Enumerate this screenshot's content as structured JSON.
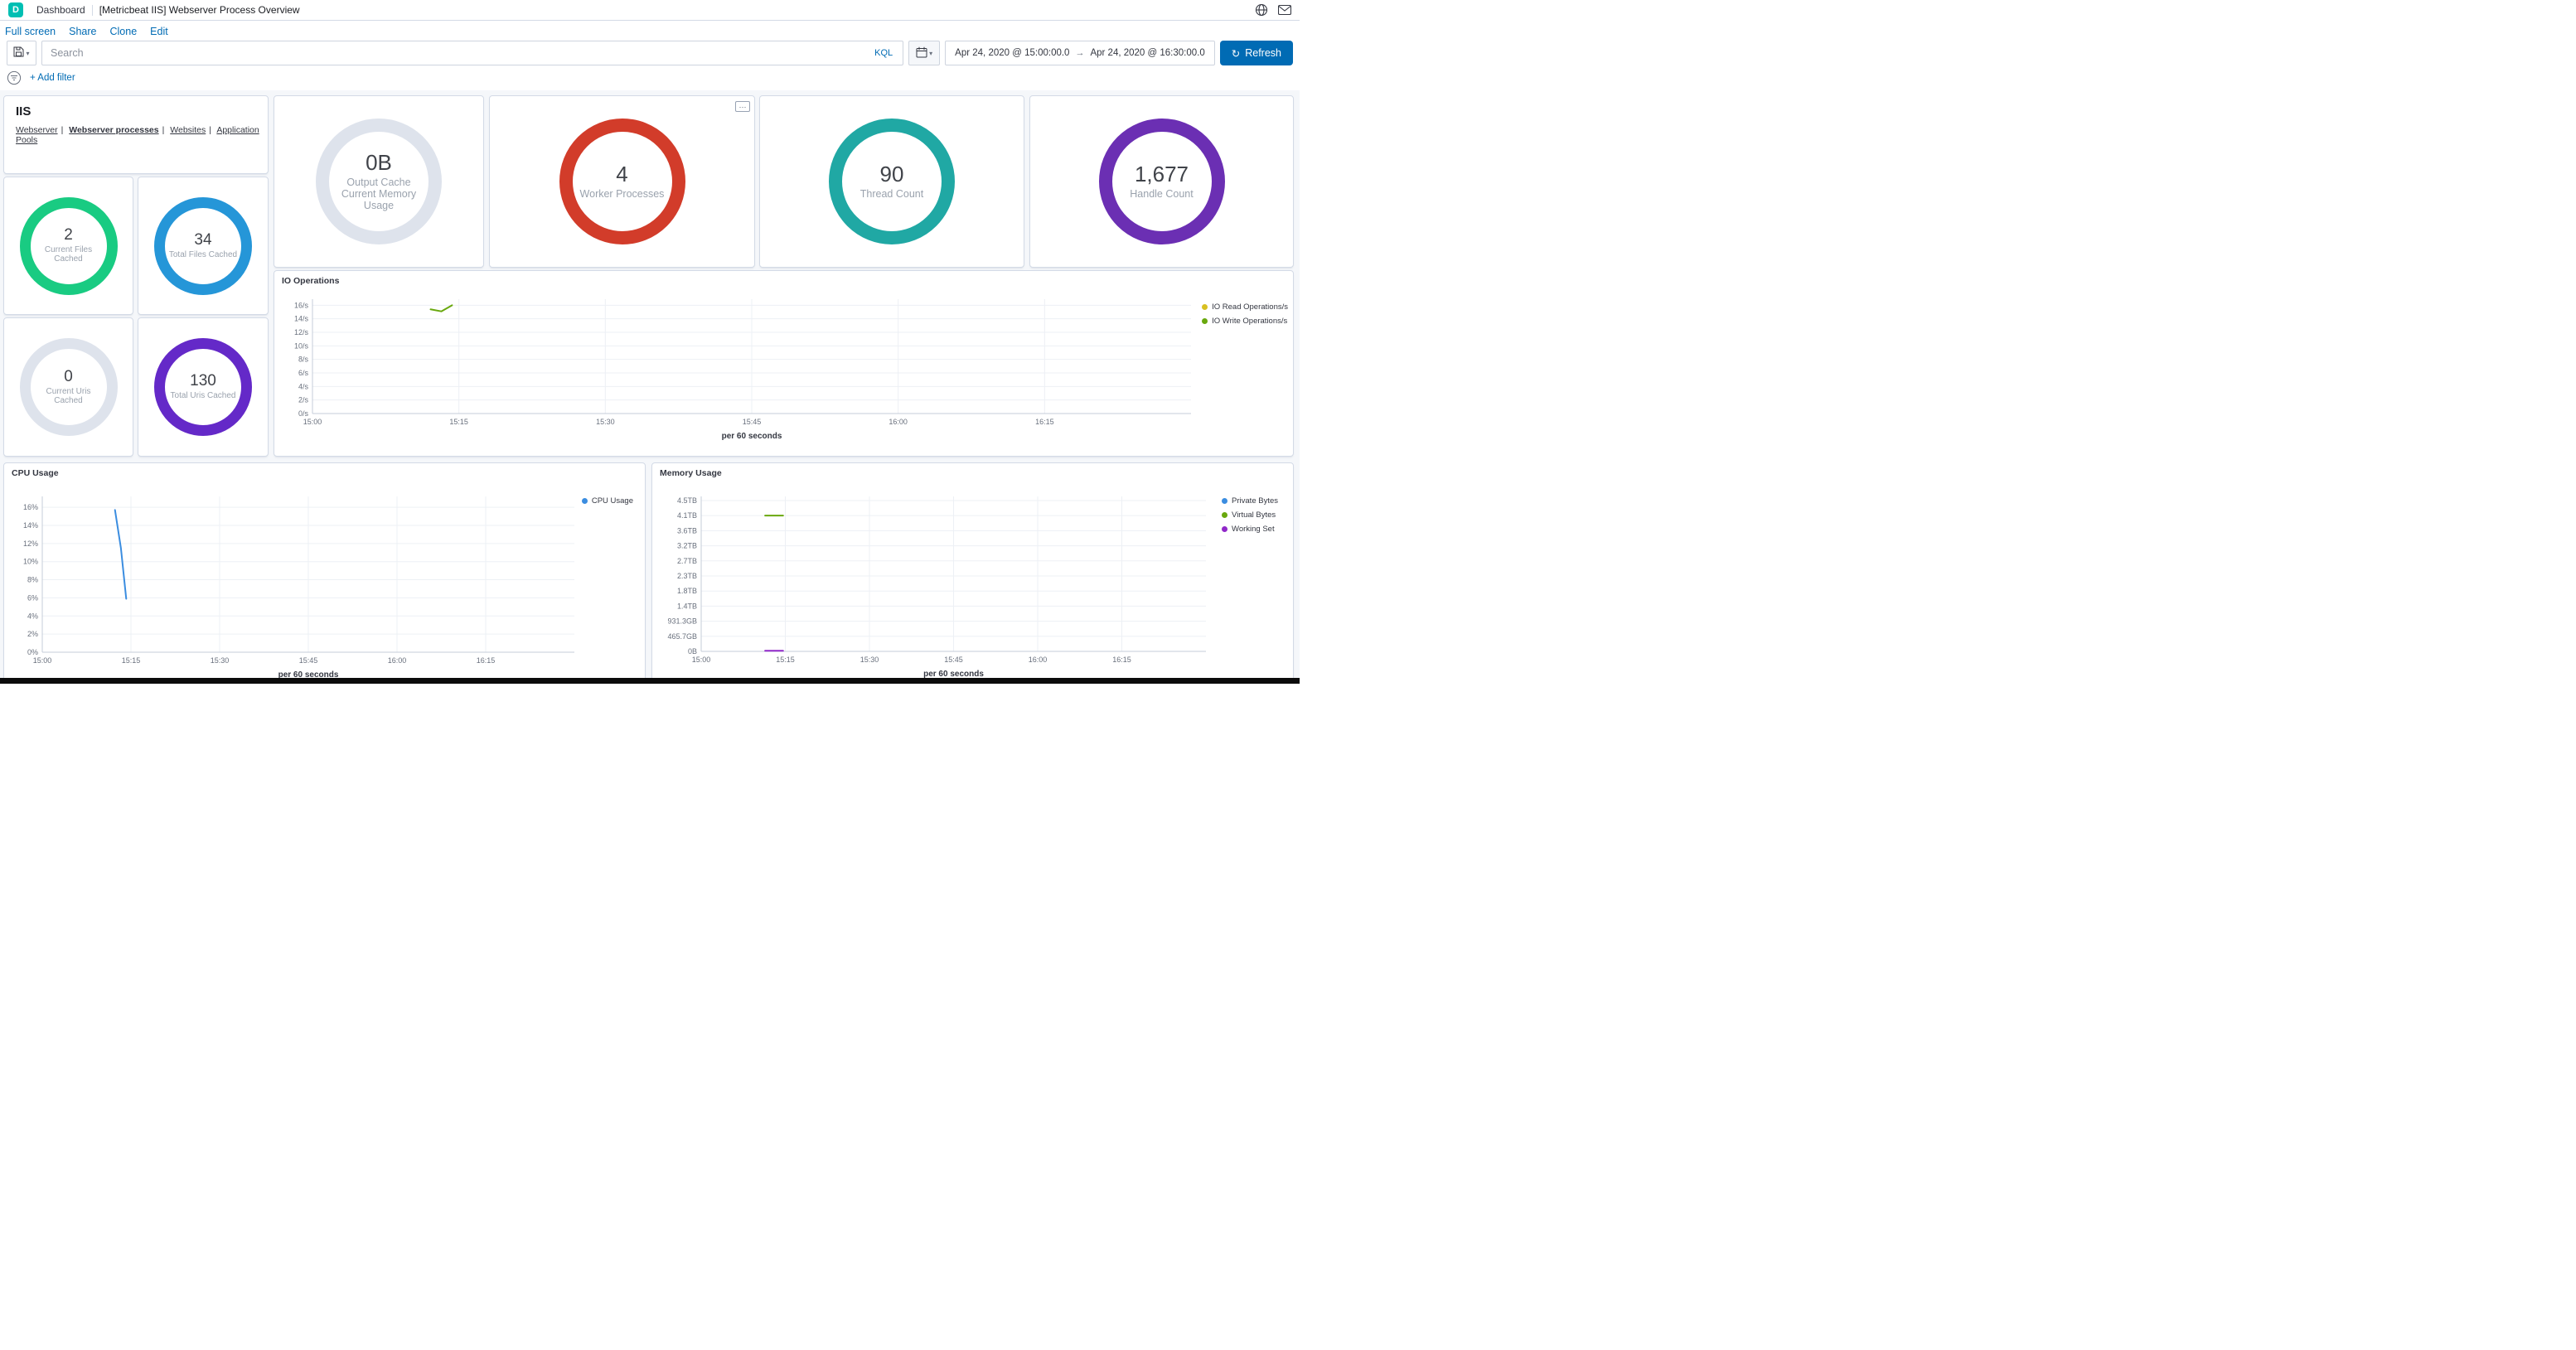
{
  "colors": {
    "primary": "#006bb4",
    "logo_teal": "#00bfb3",
    "link_blue": "#006bb4"
  },
  "icons": {
    "chevron_down": "▾",
    "refresh": "↻",
    "panel_options": "⋯"
  },
  "header": {
    "logo_letter": "D",
    "breadcrumb": "Dashboard",
    "title": "[Metricbeat IIS] Webserver Process Overview"
  },
  "action_bar": {
    "items": [
      "Full screen",
      "Share",
      "Clone",
      "Edit"
    ]
  },
  "query_bar": {
    "search_placeholder": "Search",
    "kql_label": "KQL",
    "start_date": "Apr 24, 2020 @ 15:00:00.0",
    "arrow": "→",
    "end_date": "Apr 24, 2020 @ 16:30:00.0",
    "refresh_label": "Refresh"
  },
  "filter_bar": {
    "add_filter": "+ Add filter"
  },
  "iis_panel": {
    "title": "IIS",
    "separator": "|",
    "links": [
      {
        "label": "Webserver",
        "active": false
      },
      {
        "label": "Webserver processes",
        "active": true
      },
      {
        "label": "Websites",
        "active": false
      },
      {
        "label": "Application Pools",
        "active": false
      }
    ]
  },
  "big_gauges": [
    {
      "value": "0B",
      "label": "Output Cache Current Memory Usage",
      "color": "#dee3ec"
    },
    {
      "value": "4",
      "label": "Worker Processes",
      "color": "#d23c2a"
    },
    {
      "value": "90",
      "label": "Thread Count",
      "color": "#20a8a4"
    },
    {
      "value": "1,677",
      "label": "Handle Count",
      "color": "#6b2fb3"
    }
  ],
  "small_gauges": [
    {
      "value": "2",
      "label": "Current Files Cached",
      "color": "#19cb82"
    },
    {
      "value": "34",
      "label": "Total Files Cached",
      "color": "#2596d8"
    },
    {
      "value": "0",
      "label": "Current Uris Cached",
      "color": "#dee3ec"
    },
    {
      "value": "130",
      "label": "Total Uris Cached",
      "color": "#6429c8"
    }
  ],
  "chart_data": [
    {
      "type": "line",
      "title": "IO Operations",
      "xlabel": "per 60 seconds",
      "x_unit": "minutes after 15:00",
      "xlim": [
        0,
        90
      ],
      "x_tick_values": [
        0,
        15,
        30,
        45,
        60,
        75
      ],
      "x_tick_labels": [
        "15:00",
        "15:15",
        "15:30",
        "15:45",
        "16:00",
        "16:15"
      ],
      "ylim": [
        0,
        16.9
      ],
      "y_tick_values": [
        0,
        2,
        4,
        6,
        8,
        10,
        12,
        14,
        16
      ],
      "y_tick_labels": [
        "0/s",
        "2/s",
        "4/s",
        "6/s",
        "8/s",
        "10/s",
        "12/s",
        "14/s",
        "16/s"
      ],
      "grid": true,
      "legend_position": "right",
      "margin_left": 40,
      "series": [
        {
          "name": "IO Read Operations/s",
          "color": "#d8c021",
          "points": []
        },
        {
          "name": "IO Write Operations/s",
          "color": "#69a80e",
          "points": [
            [
              12.1,
              15.4
            ],
            [
              13.2,
              15.1
            ],
            [
              14.3,
              16.0
            ]
          ]
        }
      ]
    },
    {
      "type": "line",
      "title": "CPU Usage",
      "xlabel": "per 60 seconds",
      "x_unit": "minutes after 15:00",
      "xlim": [
        0,
        90
      ],
      "x_tick_values": [
        0,
        15,
        30,
        45,
        60,
        75
      ],
      "x_tick_labels": [
        "15:00",
        "15:15",
        "15:30",
        "15:45",
        "16:00",
        "16:15"
      ],
      "ylim": [
        0,
        17.2
      ],
      "y_tick_values": [
        0,
        2,
        4,
        6,
        8,
        10,
        12,
        14,
        16
      ],
      "y_tick_labels": [
        "0%",
        "2%",
        "4%",
        "6%",
        "8%",
        "10%",
        "12%",
        "14%",
        "16%"
      ],
      "grid": true,
      "legend_position": "right",
      "margin_left": 40,
      "series": [
        {
          "name": "CPU Usage",
          "color": "#3b8de0",
          "points": [
            [
              12.3,
              15.7
            ],
            [
              13.3,
              11.5
            ],
            [
              14.2,
              5.9
            ]
          ]
        }
      ]
    },
    {
      "type": "line",
      "title": "Memory Usage",
      "xlabel": "per 60 seconds",
      "x_unit": "minutes after 15:00",
      "y_unit": "GB",
      "xlim": [
        0,
        90
      ],
      "x_tick_values": [
        0,
        15,
        30,
        45,
        60,
        75
      ],
      "x_tick_labels": [
        "15:00",
        "15:15",
        "15:30",
        "15:45",
        "16:00",
        "16:15"
      ],
      "ylim": [
        0,
        4784
      ],
      "y_tick_values": [
        0,
        465.7,
        931.3,
        1396.8,
        1862.6,
        2328.3,
        2793.9,
        3259.5,
        3725.3,
        4190.9,
        4656.6
      ],
      "y_tick_labels": [
        "0B",
        "465.7GB",
        "931.3GB",
        "1.4TB",
        "1.8TB",
        "2.3TB",
        "2.7TB",
        "3.2TB",
        "3.6TB",
        "4.1TB",
        "4.5TB"
      ],
      "grid": true,
      "legend_position": "right",
      "margin_left": 53,
      "series": [
        {
          "name": "Private Bytes",
          "color": "#3b8de0",
          "points": []
        },
        {
          "name": "Virtual Bytes",
          "color": "#69a80e",
          "points": [
            [
              11.4,
              4191
            ],
            [
              14.6,
              4191
            ]
          ]
        },
        {
          "name": "Working Set",
          "color": "#9028c9",
          "points": [
            [
              11.4,
              20
            ],
            [
              14.6,
              20
            ]
          ]
        }
      ]
    }
  ]
}
